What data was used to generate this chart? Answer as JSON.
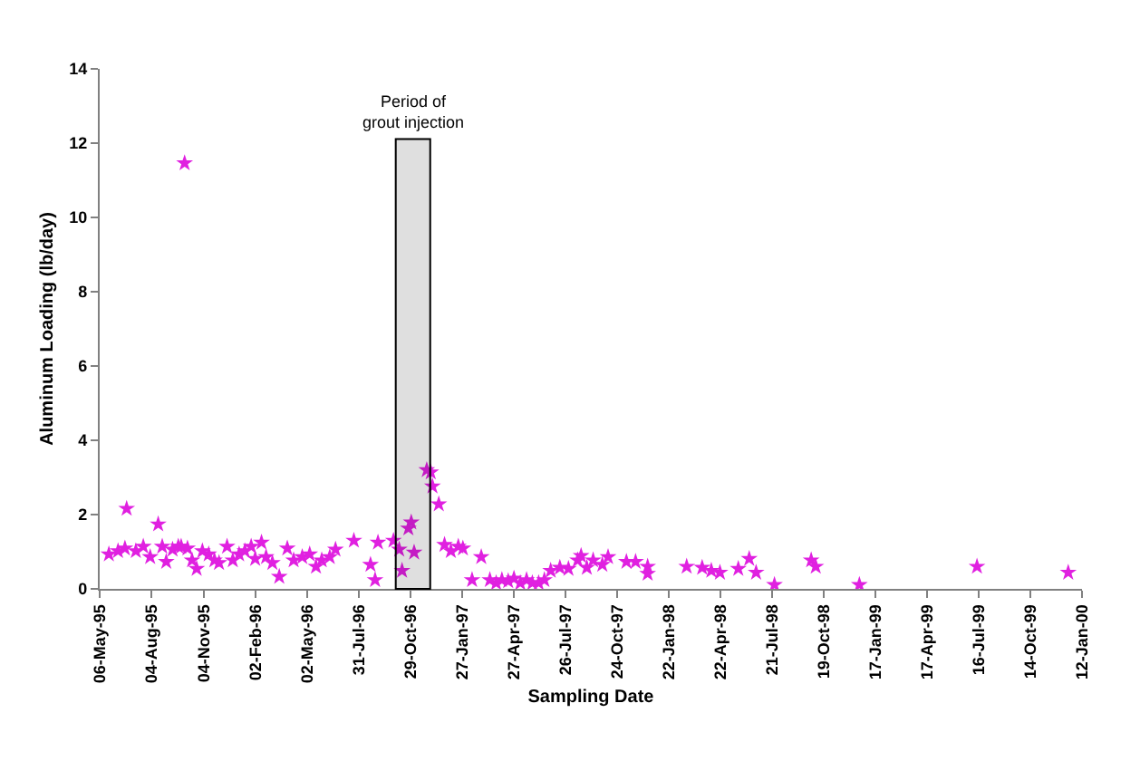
{
  "chart_data": {
    "type": "scatter",
    "xlabel": "Sampling Date",
    "ylabel": "Aluminum Loading (lb/day)",
    "marker": "star",
    "xlim": [
      "1995-05-06",
      "2000-01-12"
    ],
    "ylim": [
      0,
      14
    ],
    "yticks": [
      0,
      2,
      4,
      6,
      8,
      10,
      12,
      14
    ],
    "xticks": [
      {
        "value": "1995-05-06",
        "label": "06-May-95"
      },
      {
        "value": "1995-08-04",
        "label": "04-Aug-95"
      },
      {
        "value": "1995-11-04",
        "label": "04-Nov-95"
      },
      {
        "value": "1996-02-02",
        "label": "02-Feb-96"
      },
      {
        "value": "1996-05-02",
        "label": "02-May-96"
      },
      {
        "value": "1996-07-31",
        "label": "31-Jul-96"
      },
      {
        "value": "1996-10-29",
        "label": "29-Oct-96"
      },
      {
        "value": "1997-01-27",
        "label": "27-Jan-97"
      },
      {
        "value": "1997-04-27",
        "label": "27-Apr-97"
      },
      {
        "value": "1997-07-26",
        "label": "26-Jul-97"
      },
      {
        "value": "1997-10-24",
        "label": "24-Oct-97"
      },
      {
        "value": "1998-01-22",
        "label": "22-Jan-98"
      },
      {
        "value": "1998-04-22",
        "label": "22-Apr-98"
      },
      {
        "value": "1998-07-21",
        "label": "21-Jul-98"
      },
      {
        "value": "1998-10-19",
        "label": "19-Oct-98"
      },
      {
        "value": "1999-01-17",
        "label": "17-Jan-99"
      },
      {
        "value": "1999-04-17",
        "label": "17-Apr-99"
      },
      {
        "value": "1999-07-16",
        "label": "16-Jul-99"
      },
      {
        "value": "1999-10-14",
        "label": "14-Oct-99"
      },
      {
        "value": "2000-01-12",
        "label": "12-Jan-00"
      }
    ],
    "bands": [
      {
        "axis": "x",
        "from": "1996-10-03",
        "to": "1996-12-02",
        "label": "Period of grout injection",
        "color": "#000000"
      }
    ],
    "x": [
      "1995-05-22",
      "1995-06-07",
      "1995-06-19",
      "1995-06-22",
      "1995-07-08",
      "1995-07-21",
      "1995-08-02",
      "1995-08-16",
      "1995-08-23",
      "1995-08-30",
      "1995-09-10",
      "1995-09-20",
      "1995-09-25",
      "1995-10-01",
      "1995-10-06",
      "1995-10-14",
      "1995-10-22",
      "1995-11-01",
      "1995-11-12",
      "1995-11-22",
      "1995-11-30",
      "1995-12-14",
      "1995-12-24",
      "1996-01-04",
      "1996-01-14",
      "1996-01-25",
      "1996-02-01",
      "1996-02-12",
      "1996-02-20",
      "1996-03-02",
      "1996-03-14",
      "1996-03-28",
      "1996-04-08",
      "1996-04-23",
      "1996-05-06",
      "1996-05-17",
      "1996-05-27",
      "1996-06-10",
      "1996-06-20",
      "1996-07-22",
      "1996-08-20",
      "1996-08-28",
      "1996-09-02",
      "1996-09-29",
      "1996-10-09",
      "1996-10-14",
      "1996-10-25",
      "1996-10-30",
      "1996-11-04",
      "1996-11-26",
      "1996-12-03",
      "1996-12-06",
      "1996-12-17",
      "1996-12-27",
      "1997-01-07",
      "1997-01-20",
      "1997-01-28",
      "1997-02-13",
      "1997-03-01",
      "1997-03-16",
      "1997-03-27",
      "1997-04-06",
      "1997-04-17",
      "1997-04-27",
      "1997-05-08",
      "1997-05-19",
      "1997-05-29",
      "1997-06-09",
      "1997-06-19",
      "1997-06-30",
      "1997-07-16",
      "1997-07-31",
      "1997-08-16",
      "1997-08-22",
      "1997-09-01",
      "1997-09-12",
      "1997-09-28",
      "1997-10-08",
      "1997-11-09",
      "1997-11-25",
      "1997-12-16",
      "1997-12-16",
      "1998-02-22",
      "1998-03-21",
      "1998-04-06",
      "1998-04-21",
      "1998-05-23",
      "1998-06-11",
      "1998-06-23",
      "1998-07-25",
      "1998-09-27",
      "1998-10-05",
      "1998-12-20",
      "1999-07-13",
      "1999-12-19"
    ],
    "values": [
      0.93,
      1.02,
      1.09,
      2.16,
      1.02,
      1.14,
      0.86,
      1.74,
      1.14,
      0.73,
      1.06,
      1.14,
      1.14,
      11.46,
      1.09,
      0.77,
      0.54,
      1.02,
      0.93,
      0.77,
      0.7,
      1.14,
      0.77,
      0.93,
      1.02,
      1.14,
      0.81,
      1.25,
      0.86,
      0.7,
      0.33,
      1.09,
      0.77,
      0.86,
      0.93,
      0.6,
      0.77,
      0.86,
      1.06,
      1.3,
      0.65,
      0.24,
      1.25,
      1.3,
      1.06,
      0.49,
      1.63,
      1.79,
      0.98,
      3.2,
      3.14,
      2.76,
      2.28,
      1.19,
      1.02,
      1.14,
      1.09,
      0.24,
      0.86,
      0.24,
      0.16,
      0.24,
      0.21,
      0.28,
      0.16,
      0.24,
      0.16,
      0.16,
      0.24,
      0.49,
      0.57,
      0.54,
      0.77,
      0.89,
      0.57,
      0.77,
      0.65,
      0.86,
      0.73,
      0.73,
      0.6,
      0.41,
      0.6,
      0.57,
      0.49,
      0.44,
      0.54,
      0.81,
      0.44,
      0.11,
      0.77,
      0.6,
      0.11,
      0.6,
      0.44
    ],
    "color": "#e020e0"
  }
}
